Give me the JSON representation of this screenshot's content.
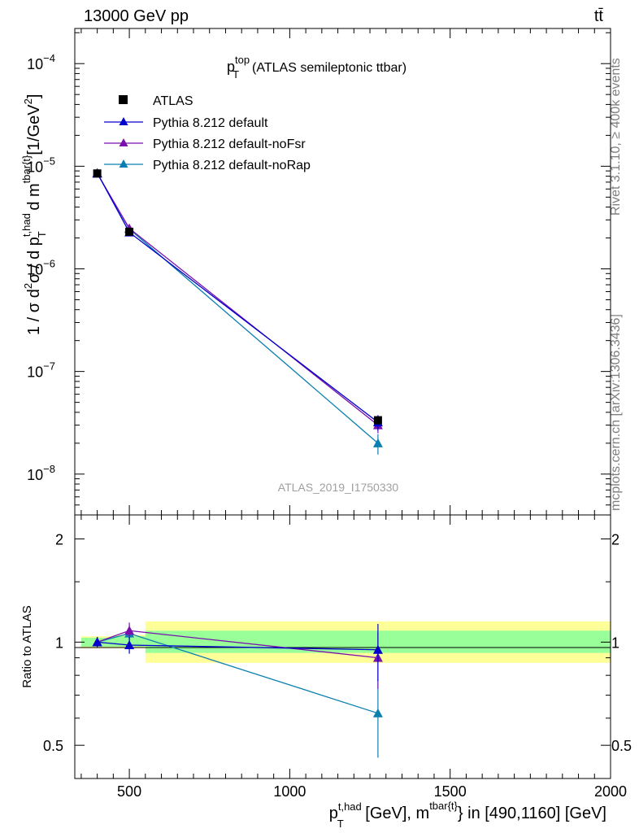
{
  "header": {
    "energy_label": "13000 GeV pp",
    "process_label": "tt̄"
  },
  "side_labels": {
    "rivet": "Rivet 3.1.10, ≥ 400k events",
    "mcplots": "mcplots.cern.ch [arXiv:1306.3436]"
  },
  "main_plot": {
    "title_main": "p",
    "title_sup": "top",
    "title_sub": "T",
    "title_rest": "(ATLAS semileptonic ttbar)",
    "analysis_id": "ATLAS_2019_I1750330",
    "ylabel": {
      "p1": "1 / σ d",
      "sup1": "2",
      "p2": "σ / d p",
      "sup2": "t,had",
      "sub2": "T",
      "p3": " d m",
      "sup3": "tbar{t}",
      "p4": "[1/GeV",
      "sup4": "2",
      "p5": "]"
    },
    "ytick_labels": [
      {
        "base": "10",
        "exp": "−4"
      },
      {
        "base": "10",
        "exp": "−5"
      },
      {
        "base": "10",
        "exp": "−6"
      },
      {
        "base": "10",
        "exp": "−7"
      },
      {
        "base": "10",
        "exp": "−8"
      }
    ]
  },
  "ratio_plot": {
    "ylabel": "Ratio to ATLAS",
    "ytick_labels": [
      "2",
      "1",
      "0.5"
    ]
  },
  "xaxis": {
    "tick_labels": [
      "500",
      "1000",
      "1500",
      "2000"
    ],
    "label": {
      "p1": "p",
      "sup1": "t,had",
      "sub1": "T",
      "p2": " [GeV], m",
      "sup2": "tbar{t}",
      "p3": "} in [490,1160] [GeV]"
    }
  },
  "legend": [
    {
      "label": "ATLAS",
      "color": "#000000",
      "marker": "square"
    },
    {
      "label": "Pythia 8.212 default",
      "color": "#0000cc",
      "marker": "triangle"
    },
    {
      "label": "Pythia 8.212 default-noFsr",
      "color": "#7a0fae",
      "marker": "triangle"
    },
    {
      "label": "Pythia 8.212 default-noRap",
      "color": "#0a7fb0",
      "marker": "triangle"
    }
  ],
  "chart_data": {
    "type": "scatter",
    "title": "p_T^top (ATLAS semileptonic ttbar)",
    "xlabel": "p_T^{t,had} [GeV], m^{tbar{t}} in [490,1160] [GeV]",
    "ylabel": "1/σ d²σ / d p_T^{t,had} d m^{tbar{t}} [1/GeV²]",
    "xlim": [
      330,
      2000
    ],
    "ylim_main": [
      4e-09,
      0.00022
    ],
    "yscale_main": "log",
    "ylim_ratio": [
      0.4,
      2.35
    ],
    "yscale_ratio": "log",
    "bin_edges": [
      350,
      450,
      550,
      2000
    ],
    "x": [
      400,
      500,
      1275
    ],
    "series": [
      {
        "name": "ATLAS",
        "color": "#000000",
        "values": [
          8.5e-06,
          2.3e-06,
          3.35e-08
        ],
        "yerr": [
          2.5e-07,
          8e-08,
          3e-09
        ],
        "ratio": [
          1.0,
          1.0,
          1.0
        ]
      },
      {
        "name": "Pythia 8.212 default",
        "color": "#0000cc",
        "values": [
          8.6e-06,
          2.27e-06,
          3.2e-08
        ],
        "yerr": [
          1.5e-07,
          1e-07,
          5.5e-09
        ],
        "ratio": [
          1.0,
          0.98,
          0.95
        ],
        "ratio_err": [
          0.035,
          0.055,
          0.18
        ]
      },
      {
        "name": "Pythia 8.212 default-noFsr",
        "color": "#7a0fae",
        "values": [
          8.5e-06,
          2.48e-06,
          3e-08
        ],
        "yerr": [
          1.5e-07,
          1e-07,
          5e-09
        ],
        "ratio": [
          1.0,
          1.08,
          0.9
        ],
        "ratio_err": [
          0.035,
          0.06,
          0.17
        ]
      },
      {
        "name": "Pythia 8.212 default-noRap",
        "color": "#0a7fb0",
        "values": [
          8.5e-06,
          2.45e-06,
          2e-08
        ],
        "yerr": [
          1.5e-07,
          1e-07,
          4.5e-09
        ],
        "ratio": [
          1.0,
          1.06,
          0.62
        ],
        "ratio_err": [
          0.035,
          0.06,
          0.16
        ]
      }
    ],
    "ratio_bands": [
      {
        "x0": 350,
        "x1": 450,
        "inner": [
          0.97,
          1.03
        ],
        "outer": [
          0.96,
          1.04
        ]
      },
      {
        "x0": 450,
        "x1": 550,
        "inner": [
          0.97,
          1.04
        ],
        "outer": [
          0.96,
          1.05
        ]
      },
      {
        "x0": 550,
        "x1": 2000,
        "inner": [
          0.93,
          1.08
        ],
        "outer": [
          0.87,
          1.15
        ]
      }
    ],
    "band_colors": {
      "inner": "#99ff99",
      "outer": "#ffff99"
    }
  }
}
